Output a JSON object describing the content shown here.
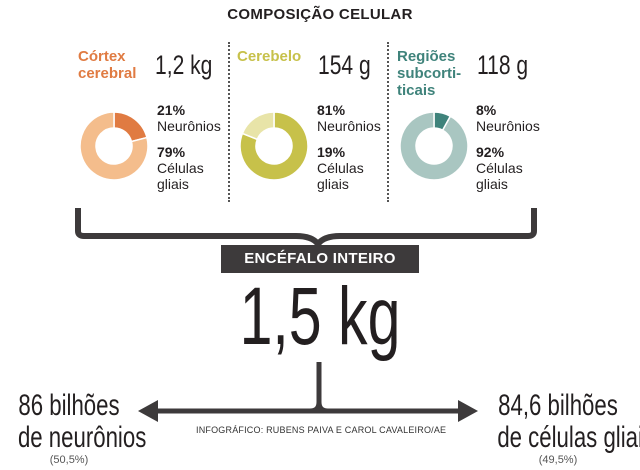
{
  "title": "COMPOSIÇÃO CELULAR",
  "regions": [
    {
      "name_lines": [
        "Córtex",
        "cerebral"
      ],
      "weight": "1,2 kg",
      "color": "#e07b42",
      "light_color": "#f4bd8c",
      "neurons_pct": "21%",
      "neurons_label": "Neurônios",
      "glia_pct": "79%",
      "glia_label_lines": [
        "Células",
        "gliais"
      ]
    },
    {
      "name_lines": [
        "Cerebelo"
      ],
      "weight": "154 g",
      "color": "#c7c14a",
      "light_color": "#e8e4a8",
      "neurons_pct": "81%",
      "neurons_label": "Neurônios",
      "glia_pct": "19%",
      "glia_label_lines": [
        "Células",
        "gliais"
      ]
    },
    {
      "name_lines": [
        "Regiões",
        "subcorti-",
        "ticais"
      ],
      "weight": "118 g",
      "color": "#3f837b",
      "light_color": "#a9c6c1",
      "neurons_pct": "8%",
      "neurons_label": "Neurônios",
      "glia_pct": "92%",
      "glia_label_lines": [
        "Células",
        "gliais"
      ]
    }
  ],
  "whole_label": "ENCÉFALO INTEIRO",
  "whole_weight": "1,5 kg",
  "neurons_total_lines": [
    "86 bilhões",
    "de neurônios"
  ],
  "neurons_total_pct": "(50,5%)",
  "glia_total_lines": [
    "84,6 bilhões",
    "de células gliais"
  ],
  "glia_total_pct": "(49,5%)",
  "credit": "INFOGRÁFICO: RUBENS PAIVA E CAROL CAVALEIRO/AE",
  "colors": {
    "text": "#231f20",
    "bracket": "#3d3a3b"
  },
  "chart_data": {
    "type": "pie",
    "title": "COMPOSIÇÃO CELULAR",
    "series": [
      {
        "name": "Córtex cerebral",
        "categories": [
          "Neurônios",
          "Células gliais"
        ],
        "values": [
          21,
          79
        ]
      },
      {
        "name": "Cerebelo",
        "categories": [
          "Neurônios",
          "Células gliais"
        ],
        "values": [
          81,
          19
        ]
      },
      {
        "name": "Regiões subcorticais",
        "categories": [
          "Neurônios",
          "Células gliais"
        ],
        "values": [
          8,
          92
        ]
      }
    ]
  }
}
